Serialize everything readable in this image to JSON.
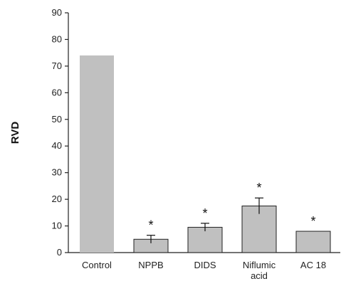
{
  "chart_data": {
    "type": "bar",
    "ylabel": "RVD",
    "xlabel": "",
    "ylim": [
      0,
      90
    ],
    "yticks": [
      0,
      10,
      20,
      30,
      40,
      50,
      60,
      70,
      80,
      90
    ],
    "grid": false,
    "categories": [
      "Control",
      "NPPB",
      "DIDS",
      "Niflumic acid",
      "AC 18"
    ],
    "category_label_lines": [
      [
        "Control"
      ],
      [
        "NPPB"
      ],
      [
        "DIDS"
      ],
      [
        "Niflumic",
        "acid"
      ],
      [
        "AC 18"
      ]
    ],
    "values": [
      74,
      5,
      9.5,
      17.5,
      8
    ],
    "errors": [
      0,
      1.5,
      1.5,
      3,
      0
    ],
    "significance": [
      "",
      "*",
      "*",
      "*",
      "*"
    ],
    "bar_color": "#c0c0c0",
    "bar_outline_color": "#222222"
  }
}
